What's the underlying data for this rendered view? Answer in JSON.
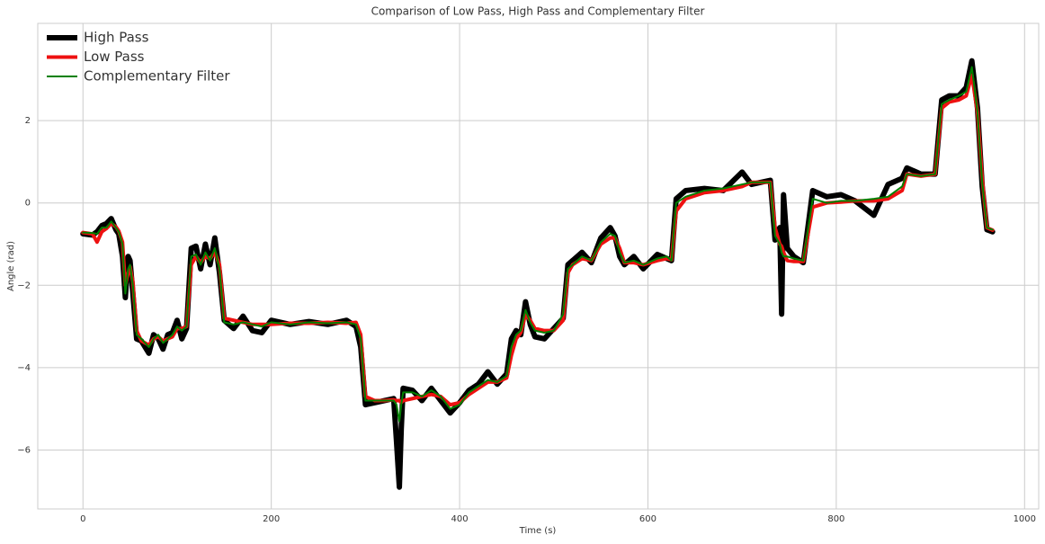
{
  "chart_data": {
    "type": "line",
    "title": "Comparison of Low Pass, High Pass and Complementary Filter",
    "x_label": "Time (s)",
    "y_label": "Angle (rad)",
    "x": [
      0,
      10,
      15,
      20,
      25,
      30,
      35,
      38,
      42,
      45,
      48,
      50,
      53,
      57,
      62,
      70,
      75,
      80,
      85,
      90,
      95,
      100,
      105,
      110,
      115,
      120,
      125,
      130,
      135,
      140,
      145,
      150,
      160,
      170,
      180,
      190,
      200,
      220,
      240,
      260,
      280,
      290,
      295,
      300,
      310,
      320,
      330,
      333,
      336,
      338,
      340,
      350,
      360,
      370,
      380,
      390,
      400,
      410,
      420,
      430,
      440,
      450,
      455,
      460,
      465,
      470,
      475,
      480,
      490,
      500,
      510,
      515,
      520,
      530,
      540,
      550,
      560,
      565,
      570,
      575,
      585,
      595,
      610,
      620,
      625,
      630,
      640,
      660,
      680,
      700,
      710,
      730,
      735,
      740,
      742,
      744,
      748,
      755,
      765,
      775,
      790,
      805,
      820,
      840,
      855,
      870,
      875,
      890,
      905,
      912,
      920,
      930,
      938,
      944,
      950,
      955,
      960,
      966
    ],
    "series": [
      {
        "name": "High Pass",
        "color": "#000000",
        "width": 6,
        "values": [
          -0.75,
          -0.78,
          -0.7,
          -0.55,
          -0.5,
          -0.38,
          -0.65,
          -0.75,
          -1.3,
          -2.3,
          -1.3,
          -1.4,
          -2.2,
          -3.3,
          -3.35,
          -3.65,
          -3.2,
          -3.3,
          -3.55,
          -3.2,
          -3.15,
          -2.85,
          -3.3,
          -3.05,
          -1.1,
          -1.05,
          -1.6,
          -1.0,
          -1.5,
          -0.85,
          -1.7,
          -2.85,
          -3.05,
          -2.75,
          -3.1,
          -3.15,
          -2.85,
          -2.95,
          -2.88,
          -2.95,
          -2.85,
          -3.0,
          -3.5,
          -4.9,
          -4.85,
          -4.8,
          -4.75,
          -5.8,
          -6.9,
          -5.5,
          -4.5,
          -4.55,
          -4.8,
          -4.5,
          -4.8,
          -5.1,
          -4.85,
          -4.55,
          -4.4,
          -4.1,
          -4.4,
          -4.15,
          -3.3,
          -3.1,
          -3.2,
          -2.4,
          -2.95,
          -3.25,
          -3.3,
          -3.05,
          -2.8,
          -1.5,
          -1.4,
          -1.2,
          -1.45,
          -0.85,
          -0.6,
          -0.8,
          -1.3,
          -1.5,
          -1.3,
          -1.6,
          -1.25,
          -1.35,
          -1.4,
          0.1,
          0.3,
          0.35,
          0.3,
          0.75,
          0.45,
          0.55,
          -0.9,
          -0.6,
          -2.7,
          0.2,
          -1.1,
          -1.3,
          -1.45,
          0.3,
          0.15,
          0.2,
          0.05,
          -0.3,
          0.45,
          0.6,
          0.85,
          0.7,
          0.7,
          2.5,
          2.6,
          2.6,
          2.8,
          3.45,
          2.3,
          0.4,
          -0.65,
          -0.7
        ]
      },
      {
        "name": "Low Pass",
        "color": "#ee1111",
        "width": 4,
        "values": [
          -0.72,
          -0.75,
          -0.95,
          -0.7,
          -0.62,
          -0.5,
          -0.58,
          -0.68,
          -0.95,
          -2.0,
          -1.7,
          -1.55,
          -1.9,
          -3.1,
          -3.35,
          -3.45,
          -3.3,
          -3.25,
          -3.35,
          -3.3,
          -3.25,
          -3.05,
          -3.05,
          -3.0,
          -1.5,
          -1.3,
          -1.45,
          -1.3,
          -1.35,
          -1.2,
          -1.5,
          -2.8,
          -2.85,
          -2.9,
          -2.95,
          -2.95,
          -2.95,
          -2.92,
          -2.92,
          -2.9,
          -2.92,
          -2.9,
          -3.2,
          -4.7,
          -4.8,
          -4.8,
          -4.78,
          -4.8,
          -4.8,
          -4.85,
          -4.8,
          -4.75,
          -4.7,
          -4.65,
          -4.7,
          -4.9,
          -4.85,
          -4.65,
          -4.5,
          -4.35,
          -4.35,
          -4.25,
          -3.7,
          -3.3,
          -3.15,
          -2.7,
          -2.85,
          -3.05,
          -3.1,
          -3.1,
          -2.85,
          -1.7,
          -1.5,
          -1.35,
          -1.4,
          -1.0,
          -0.85,
          -0.85,
          -1.1,
          -1.45,
          -1.45,
          -1.5,
          -1.4,
          -1.35,
          -1.38,
          -0.2,
          0.1,
          0.25,
          0.3,
          0.4,
          0.5,
          0.5,
          -0.6,
          -1.0,
          -1.05,
          -1.2,
          -1.4,
          -1.42,
          -1.42,
          -0.1,
          0.0,
          0.02,
          0.05,
          0.05,
          0.1,
          0.3,
          0.7,
          0.65,
          0.7,
          2.3,
          2.45,
          2.5,
          2.6,
          3.1,
          2.2,
          0.6,
          -0.6,
          -0.66
        ]
      },
      {
        "name": "Complementary Filter",
        "color": "#008000",
        "width": 2,
        "values": [
          -0.72,
          -0.73,
          -0.75,
          -0.6,
          -0.6,
          -0.45,
          -0.6,
          -0.7,
          -1.0,
          -2.2,
          -1.6,
          -1.5,
          -2.0,
          -3.2,
          -3.3,
          -3.5,
          -3.3,
          -3.2,
          -3.4,
          -3.3,
          -3.2,
          -3.0,
          -3.1,
          -3.0,
          -1.3,
          -1.25,
          -1.5,
          -1.2,
          -1.4,
          -1.1,
          -1.6,
          -2.9,
          -2.95,
          -2.9,
          -2.95,
          -3.0,
          -2.9,
          -2.95,
          -2.9,
          -2.92,
          -2.9,
          -2.95,
          -3.3,
          -4.8,
          -4.8,
          -4.8,
          -4.8,
          -4.9,
          -5.3,
          -4.9,
          -4.6,
          -4.6,
          -4.7,
          -4.55,
          -4.7,
          -5.0,
          -4.9,
          -4.6,
          -4.45,
          -4.3,
          -4.35,
          -4.2,
          -3.5,
          -3.2,
          -3.1,
          -2.6,
          -2.9,
          -3.1,
          -3.15,
          -3.1,
          -2.7,
          -1.6,
          -1.5,
          -1.3,
          -1.4,
          -0.95,
          -0.75,
          -0.8,
          -1.2,
          -1.45,
          -1.4,
          -1.5,
          -1.35,
          -1.3,
          -1.4,
          0.0,
          0.15,
          0.3,
          0.35,
          0.45,
          0.5,
          0.5,
          -0.8,
          -1.0,
          -1.2,
          -1.3,
          -1.3,
          -1.35,
          -1.4,
          0.1,
          0.0,
          0.05,
          0.05,
          0.1,
          0.15,
          0.4,
          0.7,
          0.65,
          0.7,
          2.4,
          2.5,
          2.6,
          2.7,
          3.3,
          2.2,
          0.5,
          -0.6,
          -0.65
        ]
      }
    ],
    "xlim": [
      -48,
      1015
    ],
    "ylim": [
      -7.43,
      4.36
    ],
    "xticks": [
      0,
      200,
      400,
      600,
      800,
      1000
    ],
    "yticks": [
      {
        "value": -6,
        "label": "−6"
      },
      {
        "value": -4,
        "label": "−4"
      },
      {
        "value": -2,
        "label": "−2"
      },
      0,
      2
    ],
    "grid": true,
    "legend": "upper left"
  }
}
